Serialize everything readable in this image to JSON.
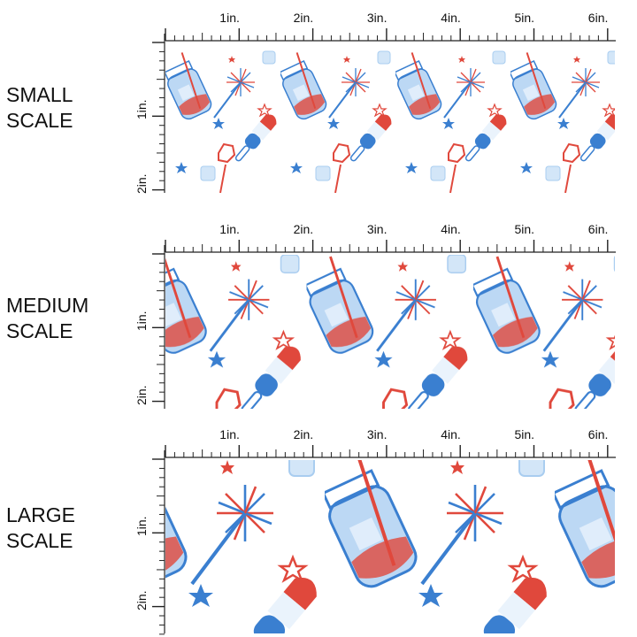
{
  "panels": [
    {
      "label_line1": "SMALL",
      "label_line2": "SCALE",
      "scale": 1.0
    },
    {
      "label_line1": "MEDIUM",
      "label_line2": "SCALE",
      "scale": 1.45
    },
    {
      "label_line1": "LARGE",
      "label_line2": "SCALE",
      "scale": 2.0
    }
  ],
  "ruler": {
    "top_labels": [
      "1in.",
      "2in.",
      "3in.",
      "4in.",
      "5in.",
      "6in."
    ],
    "side_labels": [
      "1in.",
      "2in."
    ]
  },
  "colors": {
    "red": "#e0483c",
    "blue": "#3a7fd0",
    "light_blue": "#a9cdf0"
  }
}
